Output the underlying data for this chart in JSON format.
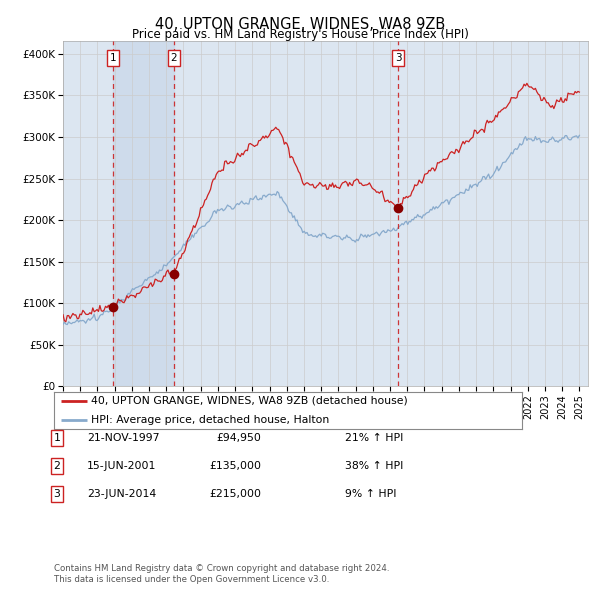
{
  "title": "40, UPTON GRANGE, WIDNES, WA8 9ZB",
  "subtitle": "Price paid vs. HM Land Registry's House Price Index (HPI)",
  "ylabel_ticks": [
    "£0",
    "£50K",
    "£100K",
    "£150K",
    "£200K",
    "£250K",
    "£300K",
    "£350K",
    "£400K"
  ],
  "ytick_values": [
    0,
    50000,
    100000,
    150000,
    200000,
    250000,
    300000,
    350000,
    400000
  ],
  "ylim": [
    0,
    415000
  ],
  "xlim_start": 1995.0,
  "xlim_end": 2025.5,
  "legend_line1": "40, UPTON GRANGE, WIDNES, WA8 9ZB (detached house)",
  "legend_line2": "HPI: Average price, detached house, Halton",
  "transaction1_date": 1997.9,
  "transaction1_price": 94950,
  "transaction1_label": "1",
  "transaction2_date": 2001.45,
  "transaction2_price": 135000,
  "transaction2_label": "2",
  "transaction3_date": 2014.47,
  "transaction3_price": 215000,
  "transaction3_label": "3",
  "table_data": [
    [
      "1",
      "21-NOV-1997",
      "£94,950",
      "21% ↑ HPI"
    ],
    [
      "2",
      "15-JUN-2001",
      "£135,000",
      "38% ↑ HPI"
    ],
    [
      "3",
      "23-JUN-2014",
      "£215,000",
      "9% ↑ HPI"
    ]
  ],
  "footer_line1": "Contains HM Land Registry data © Crown copyright and database right 2024.",
  "footer_line2": "This data is licensed under the Open Government Licence v3.0.",
  "price_line_color": "#cc2222",
  "hpi_line_color": "#88aacc",
  "vline_color": "#cc2222",
  "marker_color": "#880000",
  "bg_color": "#dce6f1",
  "plot_bg_color": "#ffffff",
  "grid_color": "#cccccc",
  "shade_color": "#c5d5e8"
}
